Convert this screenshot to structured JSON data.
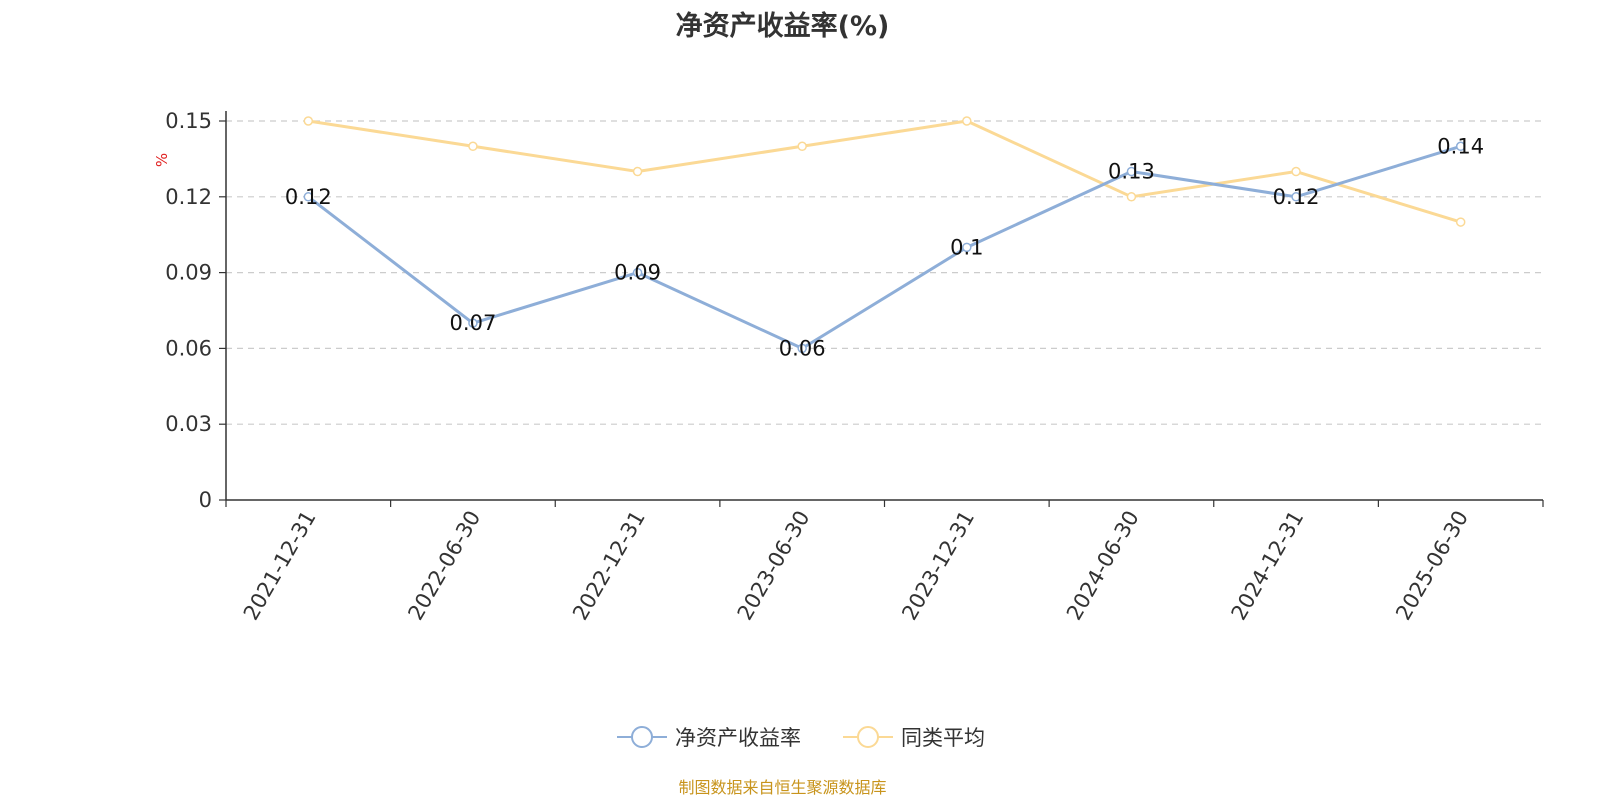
{
  "chart_data": {
    "type": "line",
    "title": "净资产收益率(%)",
    "ylabel": "%",
    "categories": [
      "2021-12-31",
      "2022-06-30",
      "2022-12-31",
      "2023-06-30",
      "2023-12-31",
      "2024-06-30",
      "2024-12-31",
      "2025-06-30"
    ],
    "ylim": [
      0,
      0.15
    ],
    "yticks": [
      "0",
      "0.03",
      "0.06",
      "0.09",
      "0.12",
      "0.15"
    ],
    "grid": true,
    "legend_position": "bottom",
    "series": [
      {
        "name": "净资产收益率",
        "values": [
          0.12,
          0.07,
          0.09,
          0.06,
          0.1,
          0.13,
          0.12,
          0.14
        ],
        "labels": [
          "0.12",
          "0.07",
          "0.09",
          "0.06",
          "0.1",
          "0.13",
          "0.12",
          "0.14"
        ],
        "color": "#8eaed8"
      },
      {
        "name": "同类平均",
        "values": [
          0.15,
          0.14,
          0.13,
          0.14,
          0.15,
          0.12,
          0.13,
          0.11
        ],
        "color": "#fbd995"
      }
    ]
  },
  "footer": "制图数据来自恒生聚源数据库",
  "colors": {
    "axis": "#333333",
    "grid": "#cccccc",
    "ylabel": "#e02020"
  }
}
